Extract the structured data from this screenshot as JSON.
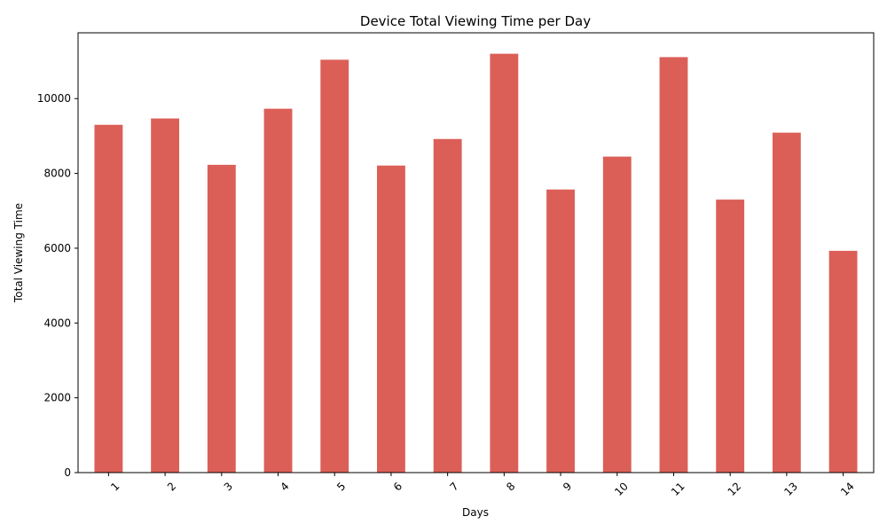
{
  "chart_data": {
    "type": "bar",
    "title": "Device Total Viewing Time per Day",
    "xlabel": "Days",
    "ylabel": "Total Viewing Time",
    "categories": [
      "1",
      "2",
      "3",
      "4",
      "5",
      "6",
      "7",
      "8",
      "9",
      "10",
      "11",
      "12",
      "13",
      "14"
    ],
    "values": [
      9300,
      9470,
      8230,
      9730,
      11040,
      8210,
      8920,
      11200,
      7570,
      8450,
      11110,
      7300,
      9090,
      5930
    ],
    "ylim": [
      0,
      11760
    ],
    "yticks": [
      0,
      2000,
      4000,
      6000,
      8000,
      10000
    ],
    "bar_color": "#db5f57",
    "grid": false,
    "legend": false
  }
}
